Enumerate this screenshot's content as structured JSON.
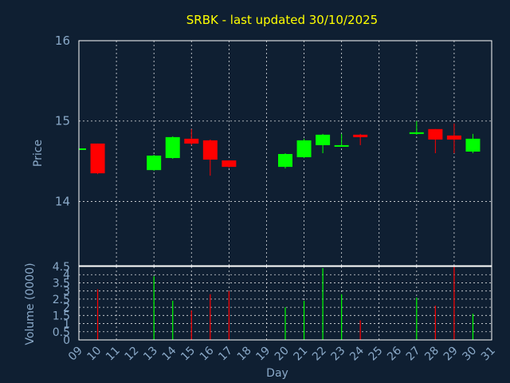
{
  "colors": {
    "background": "#0f1f32",
    "up": "#00ff00",
    "down": "#ff0000",
    "title": "#ffff00",
    "axis_text": "#8aa9c8",
    "grid": "#ffffff"
  },
  "chart_data": [
    {
      "type": "candlestick",
      "title": "SRBK - last updated 30/10/2025",
      "xlabel": "",
      "ylabel": "Price",
      "ylim": [
        13.2,
        16.0
      ],
      "yticks": [
        14,
        15,
        16
      ],
      "grid": true,
      "categories": [
        "09",
        "10",
        "11",
        "12",
        "13",
        "14",
        "15",
        "16",
        "17",
        "18",
        "19",
        "20",
        "21",
        "22",
        "23",
        "24",
        "25",
        "26",
        "27",
        "28",
        "29",
        "30",
        "31"
      ],
      "candles": [
        {
          "x": "09",
          "open": 14.66,
          "high": 14.66,
          "low": 14.66,
          "close": 14.66
        },
        {
          "x": "10",
          "open": 14.72,
          "high": 14.72,
          "low": 14.34,
          "close": 14.35
        },
        {
          "x": "13",
          "open": 14.39,
          "high": 14.58,
          "low": 14.38,
          "close": 14.57
        },
        {
          "x": "14",
          "open": 14.54,
          "high": 14.81,
          "low": 14.53,
          "close": 14.8
        },
        {
          "x": "15",
          "open": 14.78,
          "high": 14.9,
          "low": 14.7,
          "close": 14.72
        },
        {
          "x": "16",
          "open": 14.76,
          "high": 14.77,
          "low": 14.32,
          "close": 14.52
        },
        {
          "x": "17",
          "open": 14.51,
          "high": 14.51,
          "low": 14.42,
          "close": 14.43
        },
        {
          "x": "20",
          "open": 14.43,
          "high": 14.6,
          "low": 14.41,
          "close": 14.59
        },
        {
          "x": "21",
          "open": 14.55,
          "high": 14.78,
          "low": 14.54,
          "close": 14.76
        },
        {
          "x": "22",
          "open": 14.7,
          "high": 14.84,
          "low": 14.6,
          "close": 14.83
        },
        {
          "x": "23",
          "open": 14.69,
          "high": 14.84,
          "low": 14.68,
          "close": 14.7
        },
        {
          "x": "24",
          "open": 14.83,
          "high": 14.84,
          "low": 14.7,
          "close": 14.8
        },
        {
          "x": "27",
          "open": 14.84,
          "high": 15.0,
          "low": 14.83,
          "close": 14.86
        },
        {
          "x": "28",
          "open": 14.9,
          "high": 14.9,
          "low": 14.6,
          "close": 14.77
        },
        {
          "x": "29",
          "open": 14.82,
          "high": 14.97,
          "low": 14.6,
          "close": 14.77
        },
        {
          "x": "30",
          "open": 14.62,
          "high": 14.84,
          "low": 14.6,
          "close": 14.78
        }
      ]
    },
    {
      "type": "bar",
      "title": "",
      "xlabel": "Day",
      "ylabel": "Volume (0000)",
      "ylim": [
        0,
        4.5
      ],
      "yticks": [
        0,
        0.5,
        1,
        1.5,
        2,
        2.5,
        3,
        3.5,
        4,
        4.5
      ],
      "ytick_labels": [
        "0",
        "0.5",
        "1",
        "1.5",
        "2",
        "2.5",
        "3",
        "3.5",
        "4",
        "4.5"
      ],
      "grid": true,
      "categories": [
        "09",
        "10",
        "11",
        "12",
        "13",
        "14",
        "15",
        "16",
        "17",
        "18",
        "19",
        "20",
        "21",
        "22",
        "23",
        "24",
        "25",
        "26",
        "27",
        "28",
        "29",
        "30",
        "31"
      ],
      "bars": [
        {
          "x": "10",
          "value": 3.1,
          "direction": "down"
        },
        {
          "x": "13",
          "value": 3.9,
          "direction": "up"
        },
        {
          "x": "14",
          "value": 2.4,
          "direction": "up"
        },
        {
          "x": "15",
          "value": 1.8,
          "direction": "down"
        },
        {
          "x": "16",
          "value": 2.8,
          "direction": "down"
        },
        {
          "x": "17",
          "value": 3.0,
          "direction": "down"
        },
        {
          "x": "20",
          "value": 2.0,
          "direction": "up"
        },
        {
          "x": "21",
          "value": 2.4,
          "direction": "up"
        },
        {
          "x": "22",
          "value": 4.4,
          "direction": "up"
        },
        {
          "x": "23",
          "value": 2.8,
          "direction": "up"
        },
        {
          "x": "24",
          "value": 1.2,
          "direction": "down"
        },
        {
          "x": "27",
          "value": 2.6,
          "direction": "up"
        },
        {
          "x": "28",
          "value": 2.1,
          "direction": "down"
        },
        {
          "x": "29",
          "value": 4.5,
          "direction": "down"
        },
        {
          "x": "30",
          "value": 1.6,
          "direction": "up"
        }
      ]
    }
  ]
}
